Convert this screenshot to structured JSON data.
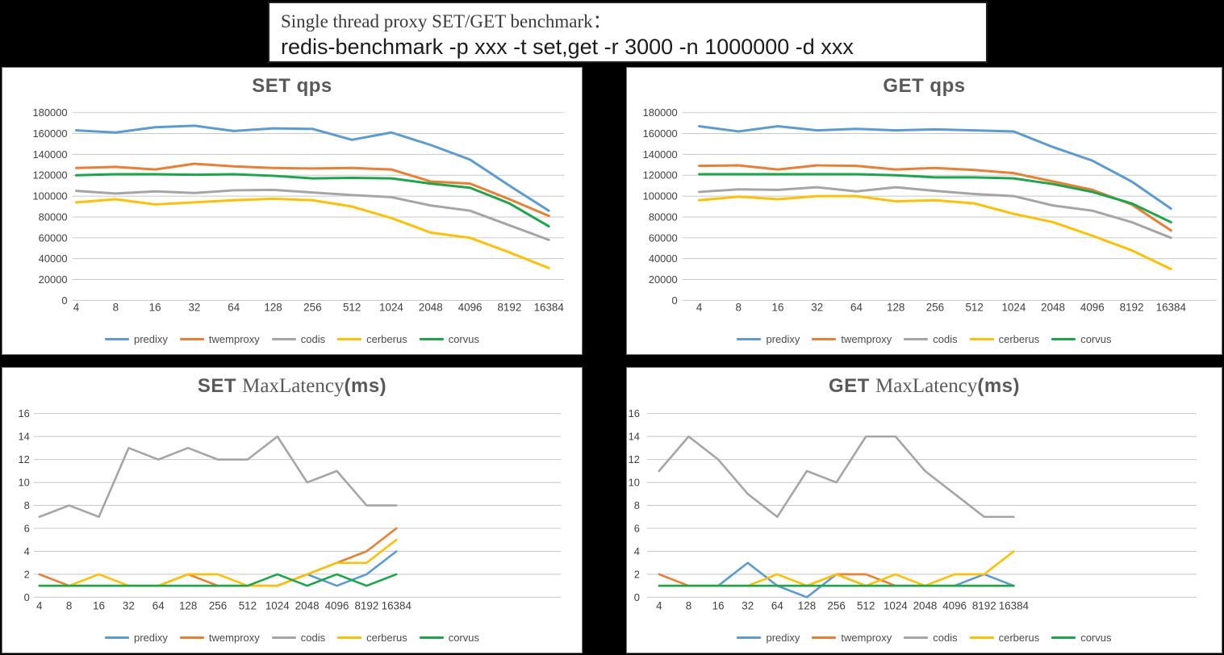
{
  "header": {
    "line1": "Single thread proxy SET/GET benchmark：",
    "line2": "redis-benchmark -p xxx -t set,get -r 3000 -n 1000000 -d xxx"
  },
  "legend_labels": [
    "predixy",
    "twemproxy",
    "codis",
    "cerberus",
    "corvus"
  ],
  "colors": {
    "series": {
      "predixy": "#5B9BD5",
      "twemproxy": "#ED7D31",
      "codis": "#A5A5A5",
      "cerberus": "#FFC000",
      "corvus": "#1AA74A"
    },
    "gridline": "#C8C8C8",
    "axis_text": "#404040",
    "title_text": "#595959"
  },
  "chart_data": [
    {
      "id": "set-qps",
      "type": "line",
      "title_parts": [
        {
          "text": "SET  qps",
          "serif": false
        }
      ],
      "categories": [
        "4",
        "8",
        "16",
        "32",
        "64",
        "128",
        "256",
        "512",
        "1024",
        "2048",
        "4096",
        "8192",
        "16384"
      ],
      "xlabel": "",
      "ylabel": "",
      "ylim": [
        0,
        180000
      ],
      "ystep": 20000,
      "grid": true,
      "legend_position": "bottom",
      "series": [
        {
          "name": "predixy",
          "values": [
            163000,
            161000,
            166000,
            167500,
            162500,
            165000,
            164500,
            154000,
            161000,
            149000,
            135000,
            110000,
            86000
          ]
        },
        {
          "name": "twemproxy",
          "values": [
            127000,
            128000,
            125500,
            131000,
            128500,
            127000,
            126500,
            127000,
            125500,
            114000,
            112000,
            97000,
            81000
          ]
        },
        {
          "name": "codis",
          "values": [
            105000,
            102500,
            104500,
            103000,
            105500,
            106000,
            103500,
            101000,
            99000,
            91000,
            86000,
            72000,
            58000
          ]
        },
        {
          "name": "cerberus",
          "values": [
            94000,
            97000,
            92000,
            94000,
            96000,
            97500,
            96000,
            90000,
            79000,
            65000,
            60000,
            46000,
            31000
          ]
        },
        {
          "name": "corvus",
          "values": [
            120000,
            121000,
            121000,
            120500,
            121000,
            119500,
            117000,
            117500,
            117000,
            112000,
            108000,
            93000,
            71000
          ]
        }
      ]
    },
    {
      "id": "get-qps",
      "type": "line",
      "title_parts": [
        {
          "text": "GET  qps",
          "serif": false
        }
      ],
      "categories": [
        "4",
        "8",
        "16",
        "32",
        "64",
        "128",
        "256",
        "512",
        "1024",
        "2048",
        "4096",
        "8192",
        "16384"
      ],
      "xlabel": "",
      "ylabel": "",
      "ylim": [
        0,
        180000
      ],
      "ystep": 20000,
      "grid": true,
      "legend_position": "bottom",
      "series": [
        {
          "name": "predixy",
          "values": [
            167000,
            162000,
            167000,
            163000,
            164500,
            163000,
            164000,
            163000,
            162000,
            147000,
            134000,
            114000,
            88000
          ]
        },
        {
          "name": "twemproxy",
          "values": [
            129000,
            129500,
            125500,
            129500,
            129000,
            125500,
            127000,
            125000,
            122000,
            114000,
            106000,
            92000,
            67000
          ]
        },
        {
          "name": "codis",
          "values": [
            104000,
            106500,
            106000,
            108500,
            104500,
            108500,
            105000,
            102000,
            100000,
            91000,
            86000,
            75000,
            60000
          ]
        },
        {
          "name": "cerberus",
          "values": [
            96000,
            99500,
            97000,
            100000,
            100000,
            95000,
            96000,
            93000,
            83000,
            75000,
            62000,
            48000,
            30000
          ]
        },
        {
          "name": "corvus",
          "values": [
            121000,
            121000,
            121000,
            121000,
            121000,
            120000,
            118000,
            118000,
            117000,
            111500,
            104000,
            93000,
            75000
          ]
        }
      ]
    },
    {
      "id": "set-latency",
      "type": "line",
      "title_parts": [
        {
          "text": "SET ",
          "serif": false
        },
        {
          "text": "MaxLatency",
          "serif": true
        },
        {
          "text": "(ms)",
          "serif": false
        }
      ],
      "categories": [
        "4",
        "8",
        "16",
        "32",
        "64",
        "128",
        "256",
        "512",
        "1024",
        "2048",
        "4096",
        "8192",
        "16384"
      ],
      "xlabel": "",
      "ylabel": "",
      "ylim": [
        0,
        16
      ],
      "ystep": 2,
      "grid": true,
      "legend_position": "bottom",
      "series": [
        {
          "name": "predixy",
          "values": [
            1,
            1,
            1,
            1,
            1,
            1,
            1,
            1,
            1,
            2,
            1,
            2,
            4
          ]
        },
        {
          "name": "twemproxy",
          "values": [
            2,
            1,
            1,
            1,
            1,
            2,
            1,
            1,
            1,
            2,
            3,
            4,
            6
          ]
        },
        {
          "name": "codis",
          "values": [
            7,
            8,
            7,
            13,
            12,
            13,
            12,
            12,
            14,
            10,
            11,
            8,
            8
          ]
        },
        {
          "name": "cerberus",
          "values": [
            1,
            1,
            2,
            1,
            1,
            2,
            2,
            1,
            1,
            2,
            3,
            3,
            5
          ]
        },
        {
          "name": "corvus",
          "values": [
            1,
            1,
            1,
            1,
            1,
            1,
            1,
            1,
            2,
            1,
            2,
            1,
            2
          ]
        }
      ]
    },
    {
      "id": "get-latency",
      "type": "line",
      "title_parts": [
        {
          "text": "GET ",
          "serif": false
        },
        {
          "text": "MaxLatency",
          "serif": true
        },
        {
          "text": "(ms)",
          "serif": false
        }
      ],
      "categories": [
        "4",
        "8",
        "16",
        "32",
        "64",
        "128",
        "256",
        "512",
        "1024",
        "2048",
        "4096",
        "8192",
        "16384"
      ],
      "xlabel": "",
      "ylabel": "",
      "ylim": [
        0,
        16
      ],
      "ystep": 2,
      "grid": true,
      "legend_position": "bottom",
      "series": [
        {
          "name": "predixy",
          "values": [
            1,
            1,
            1,
            3,
            1,
            0,
            2,
            1,
            1,
            1,
            1,
            2,
            1
          ]
        },
        {
          "name": "twemproxy",
          "values": [
            2,
            1,
            1,
            1,
            1,
            1,
            2,
            2,
            1,
            1,
            1,
            1,
            1
          ]
        },
        {
          "name": "codis",
          "values": [
            11,
            14,
            12,
            9,
            7,
            11,
            10,
            14,
            14,
            11,
            9,
            7,
            7
          ]
        },
        {
          "name": "cerberus",
          "values": [
            1,
            1,
            1,
            1,
            2,
            1,
            2,
            1,
            2,
            1,
            2,
            2,
            4
          ]
        },
        {
          "name": "corvus",
          "values": [
            1,
            1,
            1,
            1,
            1,
            1,
            1,
            1,
            1,
            1,
            1,
            1,
            1
          ]
        }
      ]
    }
  ]
}
